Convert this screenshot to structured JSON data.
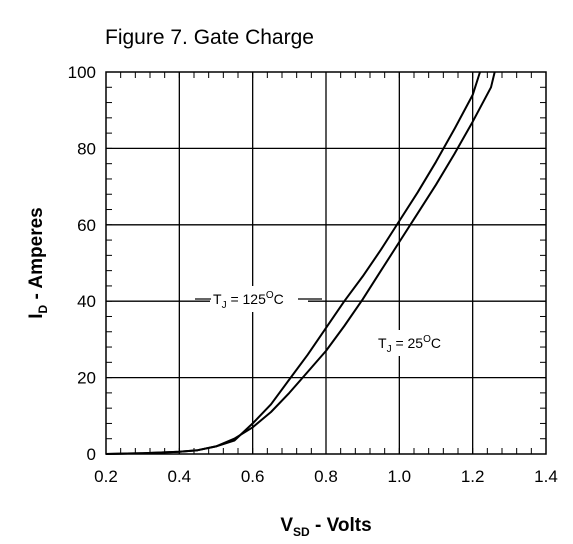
{
  "chart_data": {
    "type": "line",
    "title": "Figure 7. Gate Charge",
    "xlabel": {
      "main": "V",
      "sub": "SD",
      "rest": " -  Volts"
    },
    "ylabel": {
      "main": "I",
      "sub": "D",
      "rest": " - Amperes"
    },
    "xlim": [
      0.2,
      1.4
    ],
    "ylim": [
      0,
      100
    ],
    "xticks": [
      "0.2",
      "0.4",
      "0.6",
      "0.8",
      "1.0",
      "1.2",
      "1.4"
    ],
    "yticks": [
      "0",
      "20",
      "40",
      "60",
      "80",
      "100"
    ],
    "grid": true,
    "series": [
      {
        "label": {
          "main": "T",
          "sub": "J",
          "mid": " = 125",
          "sup": "O",
          "end": "C"
        },
        "x": [
          0.2,
          0.3,
          0.4,
          0.45,
          0.5,
          0.55,
          0.6,
          0.65,
          0.7,
          0.75,
          0.8,
          0.85,
          0.9,
          0.95,
          1.0,
          1.05,
          1.1,
          1.15,
          1.2,
          1.22
        ],
        "y": [
          0,
          0.2,
          0.6,
          1.0,
          2.0,
          3.5,
          8,
          13,
          19.5,
          26,
          33,
          40,
          46.5,
          53.5,
          61,
          68.5,
          76.5,
          85,
          94,
          100
        ]
      },
      {
        "label": {
          "main": "T",
          "sub": "J",
          "mid": " = 25",
          "sup": "O",
          "end": "C"
        },
        "x": [
          0.2,
          0.3,
          0.4,
          0.45,
          0.5,
          0.55,
          0.6,
          0.65,
          0.7,
          0.75,
          0.8,
          0.85,
          0.9,
          0.95,
          1.0,
          1.05,
          1.1,
          1.15,
          1.2,
          1.25,
          1.26
        ],
        "y": [
          0,
          0.2,
          0.6,
          1.0,
          2.0,
          4.0,
          7,
          11,
          16,
          21.5,
          27,
          33.5,
          40.5,
          48,
          55.5,
          63,
          70.5,
          78.5,
          87,
          96,
          100
        ]
      }
    ]
  }
}
